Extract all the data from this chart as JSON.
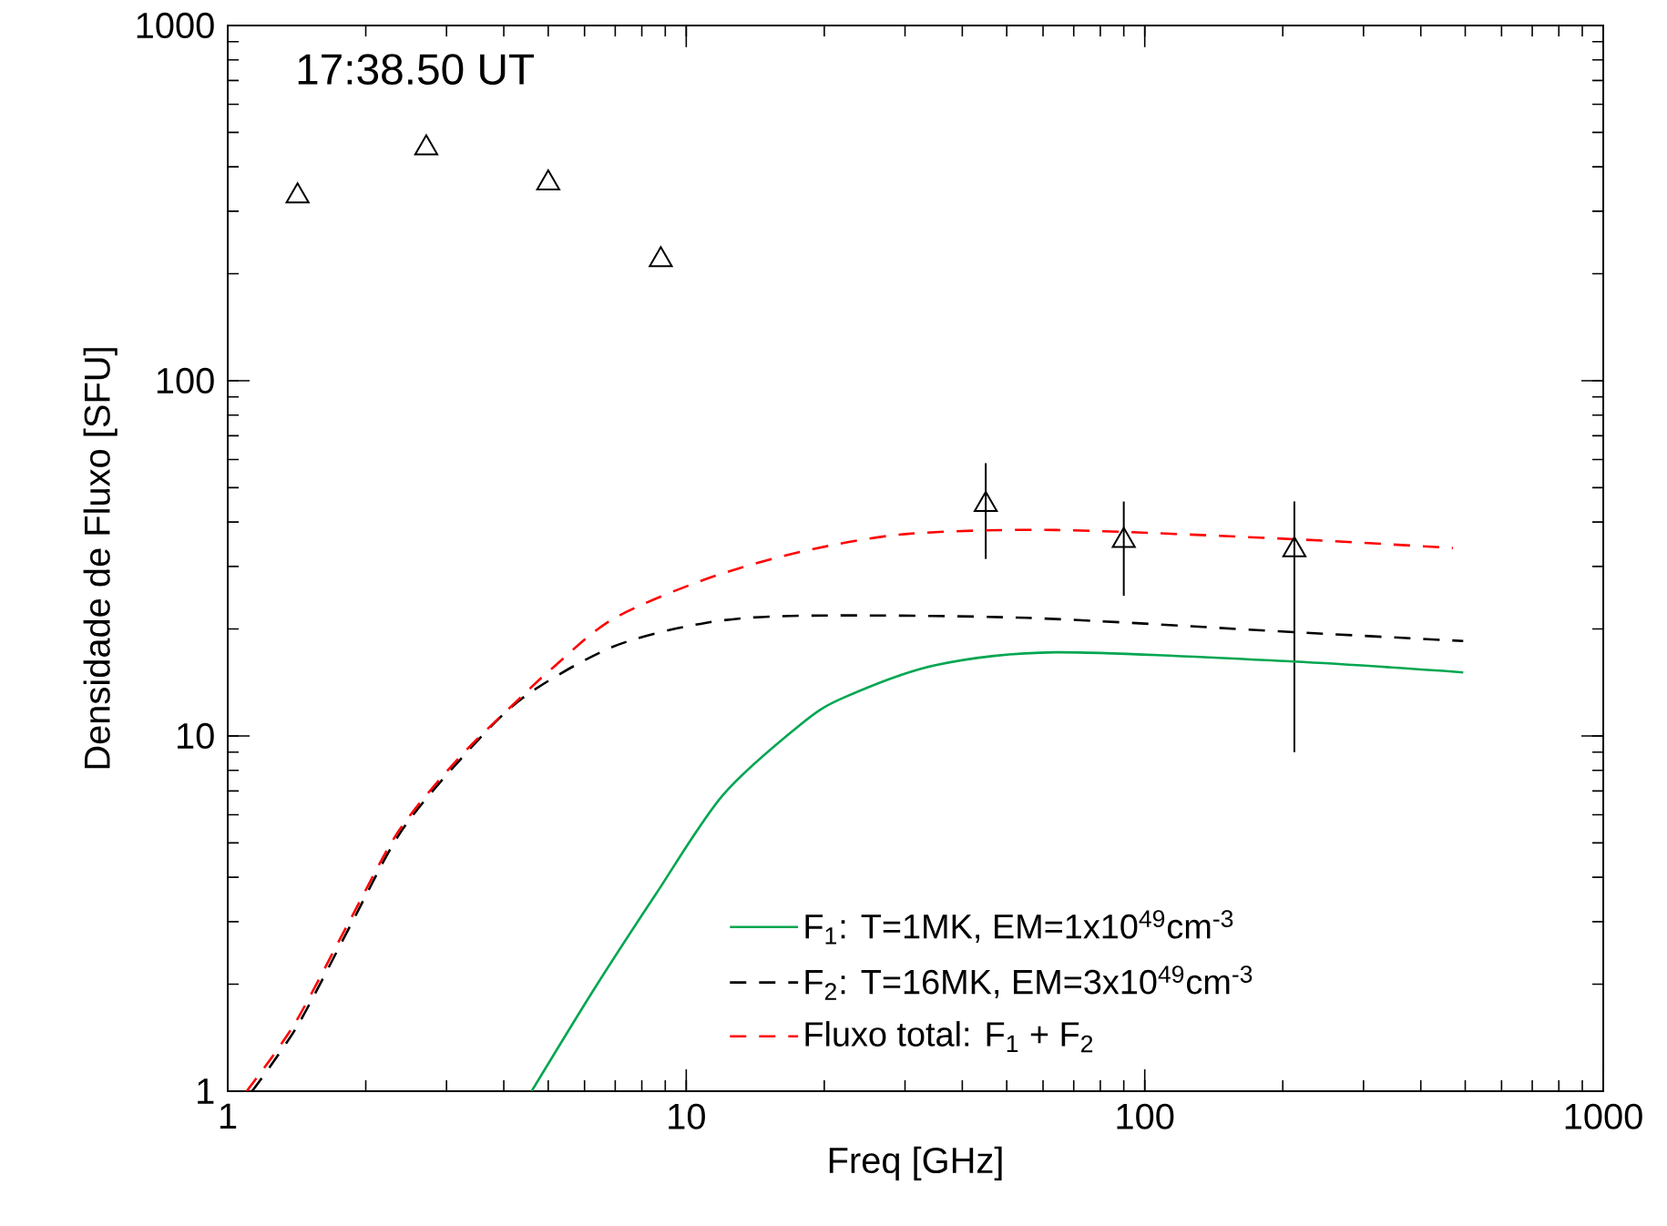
{
  "chart_data": {
    "type": "line",
    "xlabel": "Freq [GHz]",
    "ylabel": "Densidade de Fluxo [SFU]",
    "log": "xy",
    "xlim": [
      1,
      1000
    ],
    "ylim": [
      1,
      1000
    ],
    "xticks": [
      1,
      10,
      100,
      1000
    ],
    "yticks": [
      1,
      10,
      100,
      1000
    ],
    "legend": "bottom right",
    "grid": false,
    "annotations": [
      "17:38.50 UT"
    ],
    "series": [
      {
        "type": "scatter",
        "marker": "triangle",
        "color": "#000000",
        "x": [
          1.42,
          2.71,
          5.0,
          8.8,
          45,
          90,
          212
        ],
        "values": [
          331,
          452,
          360,
          219,
          44.8,
          35.5,
          33.4
        ],
        "errors": [
          null,
          null,
          null,
          null,
          [
            31.5,
            58.6
          ],
          [
            24.8,
            45.7
          ],
          [
            9.0,
            45.7
          ]
        ]
      },
      {
        "name": "F$_{1}$: T=1MK, EM=1x10$^{49}$cm$^{-3}$",
        "color": "#00a651",
        "line_style": "solid",
        "x": [
          4.6,
          6.3,
          8.6,
          12.0,
          17.8,
          22,
          34.8,
          64,
          211,
          495
        ],
        "values": [
          1,
          1.94,
          3.6,
          6.8,
          10.8,
          12.8,
          15.8,
          17.2,
          16.2,
          15.1
        ]
      },
      {
        "name": "F$_{2}$: T=16MK, EM=3x10$^{49}$cm$^{-3}$",
        "color": "#000000",
        "line_style": "dashed",
        "x": [
          1.13,
          1.42,
          1.86,
          2.38,
          3.22,
          4.4,
          6.9,
          11,
          17.8,
          55,
          211,
          495
        ],
        "values": [
          1,
          1.53,
          2.96,
          5.35,
          8.6,
          12.8,
          17.8,
          20.8,
          21.8,
          21.5,
          19.6,
          18.5
        ]
      },
      {
        "name": "Fluxo total: F$_{1}$ + F$_{2}$",
        "color": "#ff0000",
        "line_style": "dashed",
        "x": [
          1.1,
          1.4,
          1.84,
          2.36,
          3.2,
          4.4,
          5.1,
          6.9,
          11,
          17.8,
          30,
          64,
          211,
          470
        ],
        "values": [
          1,
          1.55,
          3.0,
          5.4,
          8.7,
          13.0,
          15.5,
          21.3,
          27.6,
          33,
          37,
          38,
          35.8,
          33.8
        ]
      }
    ]
  }
}
